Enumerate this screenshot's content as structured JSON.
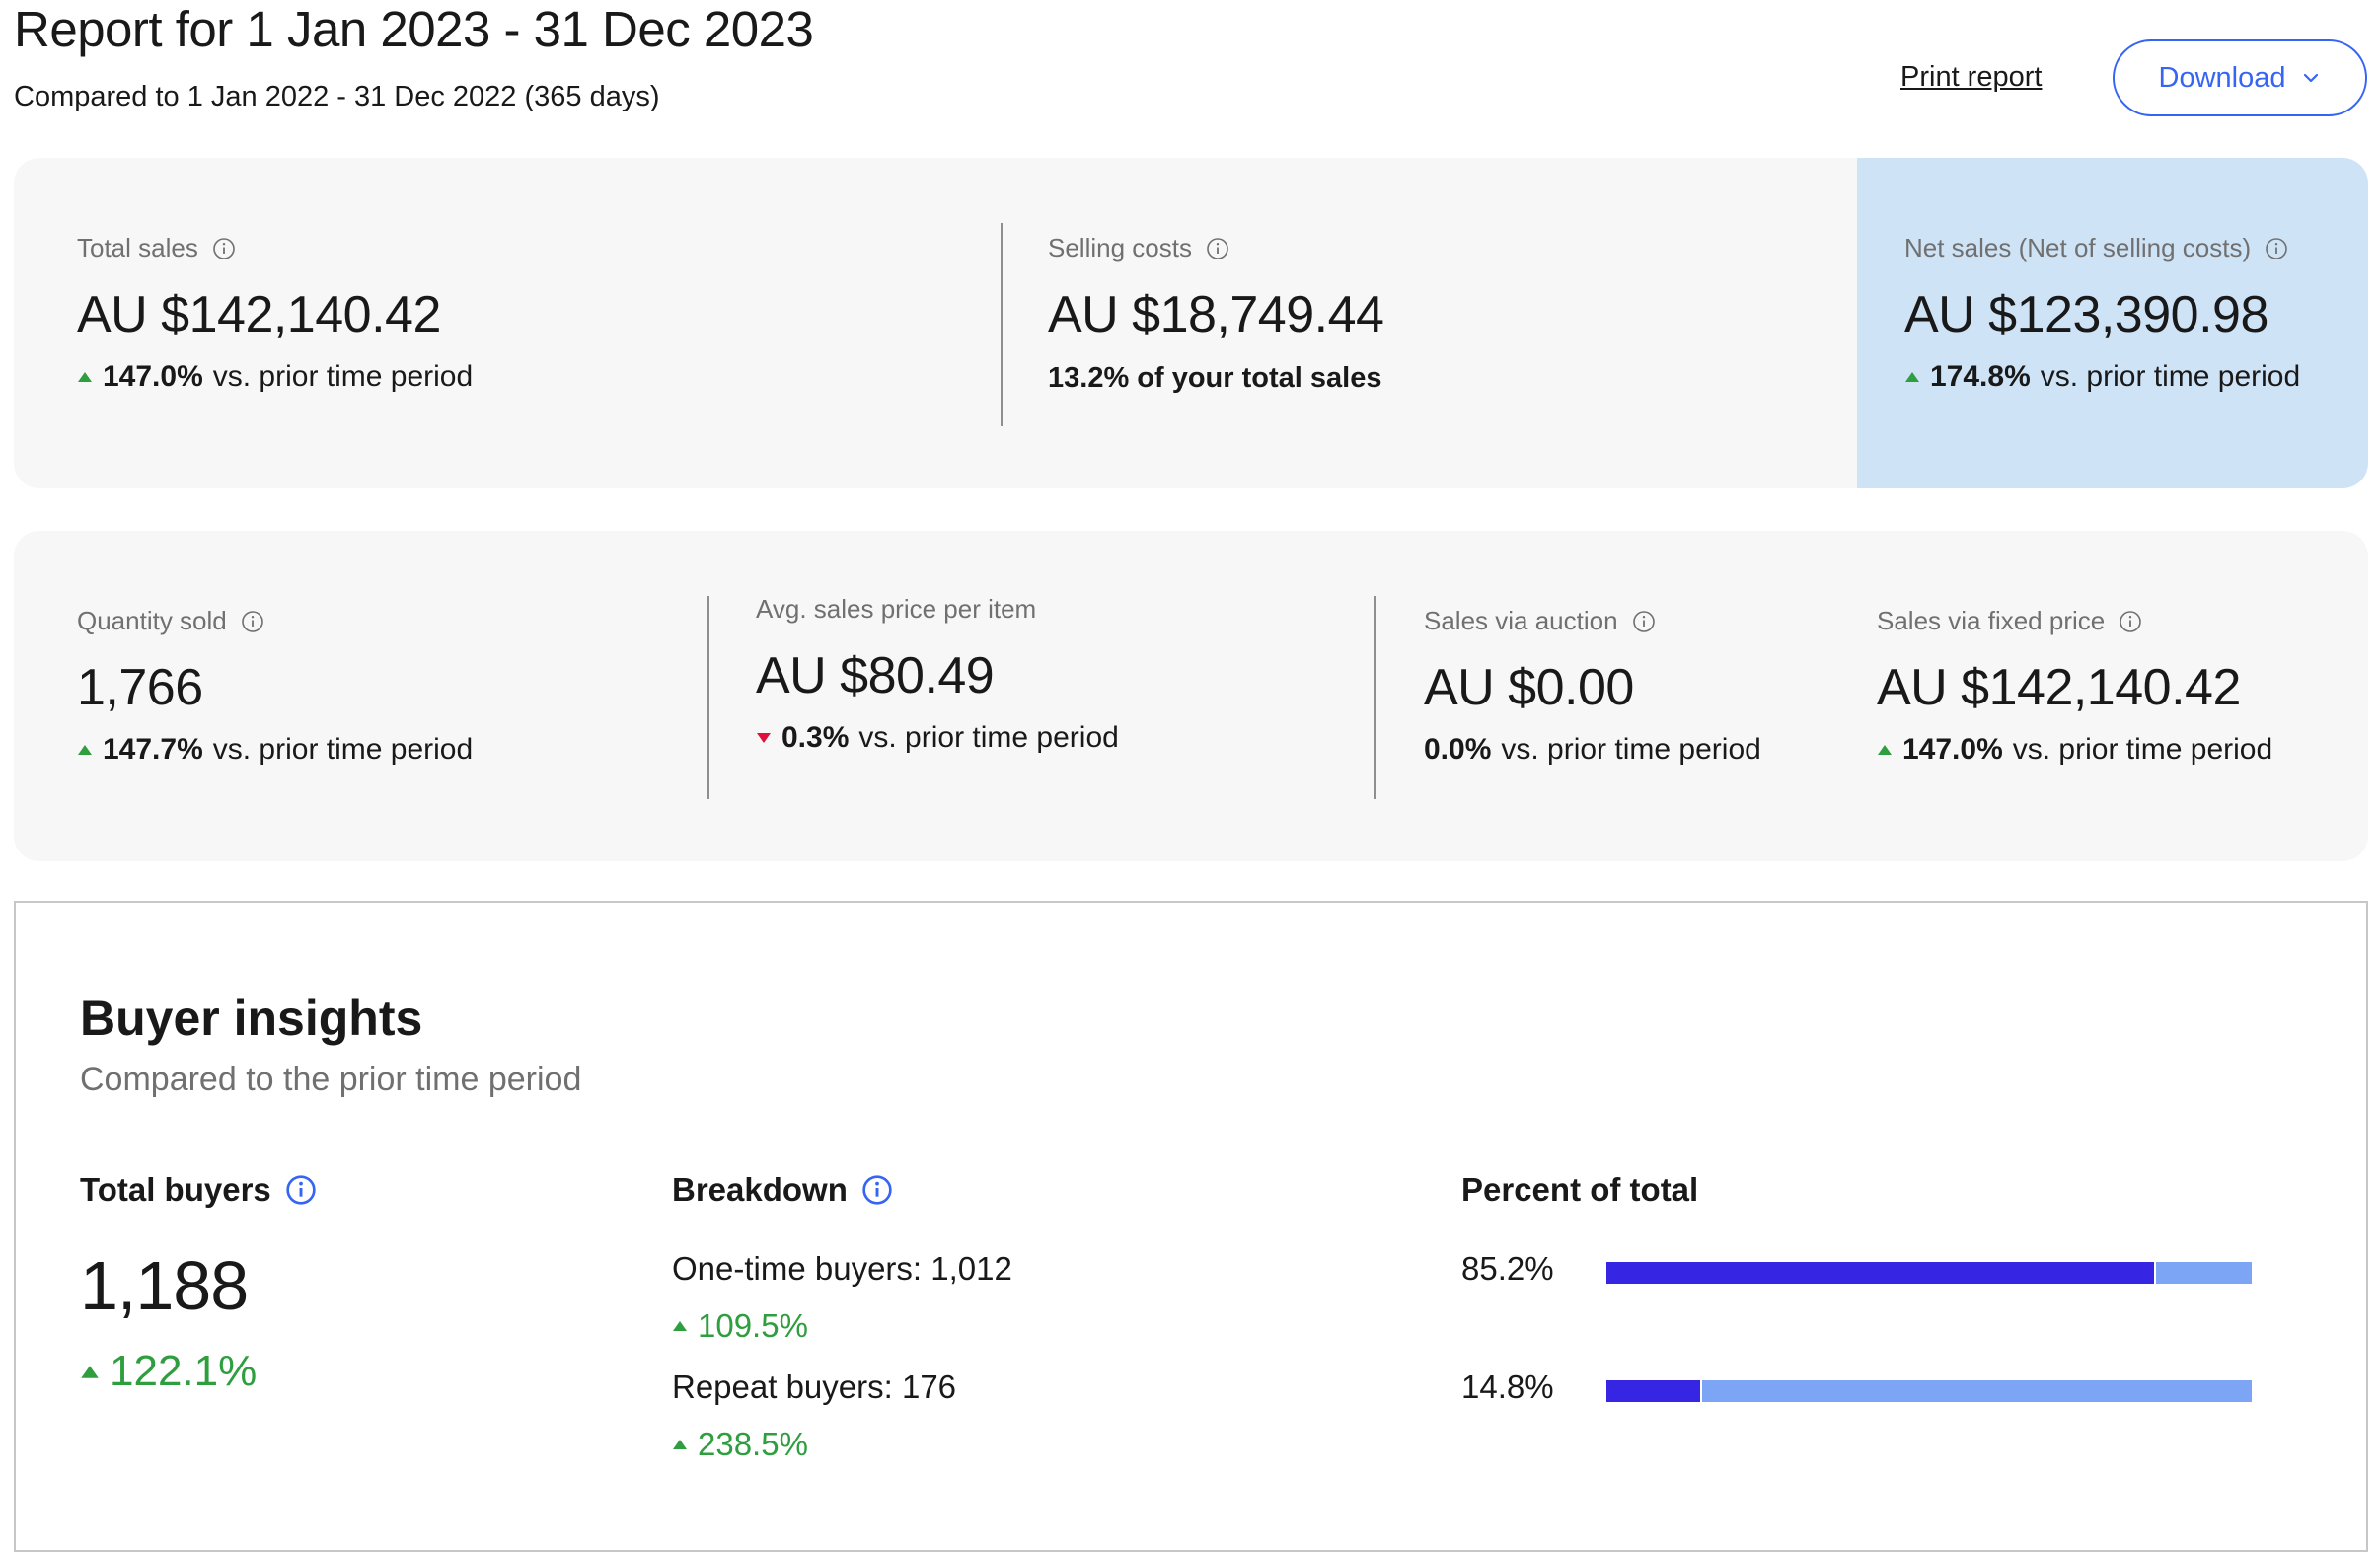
{
  "header": {
    "title": "Report for 1 Jan 2023 - 31 Dec 2023",
    "subtitle": "Compared to 1 Jan 2022 - 31 Dec 2022 (365 days)",
    "print_label": "Print report",
    "download_label": "Download"
  },
  "summary": {
    "total_sales": {
      "label": "Total sales",
      "value": "AU $142,140.42",
      "change": "147.0%",
      "change_suffix": "vs. prior time period",
      "direction": "up"
    },
    "selling_costs": {
      "label": "Selling costs",
      "value": "AU $18,749.44",
      "note": "13.2% of your total sales"
    },
    "net_sales": {
      "label": "Net sales (Net of selling costs)",
      "value": "AU $123,390.98",
      "change": "174.8%",
      "change_suffix": "vs. prior time period",
      "direction": "up"
    }
  },
  "details": {
    "quantity_sold": {
      "label": "Quantity sold",
      "value": "1,766",
      "change": "147.7%",
      "change_suffix": "vs. prior time period",
      "direction": "up"
    },
    "avg_price": {
      "label": "Avg. sales price per item",
      "value": "AU $80.49",
      "change": "0.3%",
      "change_suffix": "vs. prior time period",
      "direction": "down"
    },
    "auction": {
      "label": "Sales via auction",
      "value": "AU $0.00",
      "change": "0.0%",
      "change_suffix": "vs. prior time period",
      "direction": "none"
    },
    "fixed_price": {
      "label": "Sales via fixed price",
      "value": "AU $142,140.42",
      "change": "147.0%",
      "change_suffix": "vs. prior time period",
      "direction": "up"
    }
  },
  "buyer_insights": {
    "title": "Buyer insights",
    "subtitle": "Compared to the prior time period",
    "total_buyers_label": "Total buyers",
    "total_buyers_value": "1,188",
    "total_buyers_change": "122.1%",
    "breakdown_label": "Breakdown",
    "one_time_label": "One-time buyers: 1,012",
    "one_time_change": "109.5%",
    "repeat_label": "Repeat buyers: 176",
    "repeat_change": "238.5%",
    "percent_label": "Percent of total",
    "one_time_percent_text": "85.2%",
    "repeat_percent_text": "14.8%",
    "one_time_percent": 85.2,
    "repeat_percent": 14.8
  },
  "colors": {
    "accent": "#3665f3",
    "positive": "#2e9e3e",
    "negative": "#e0103a",
    "highlight_panel": "#cfe3f7",
    "bar_primary": "#3626e4",
    "bar_secondary": "#7ca5f6"
  },
  "icons": [
    "info-icon",
    "chevron-down-icon",
    "triangle-up-icon",
    "triangle-down-icon"
  ]
}
